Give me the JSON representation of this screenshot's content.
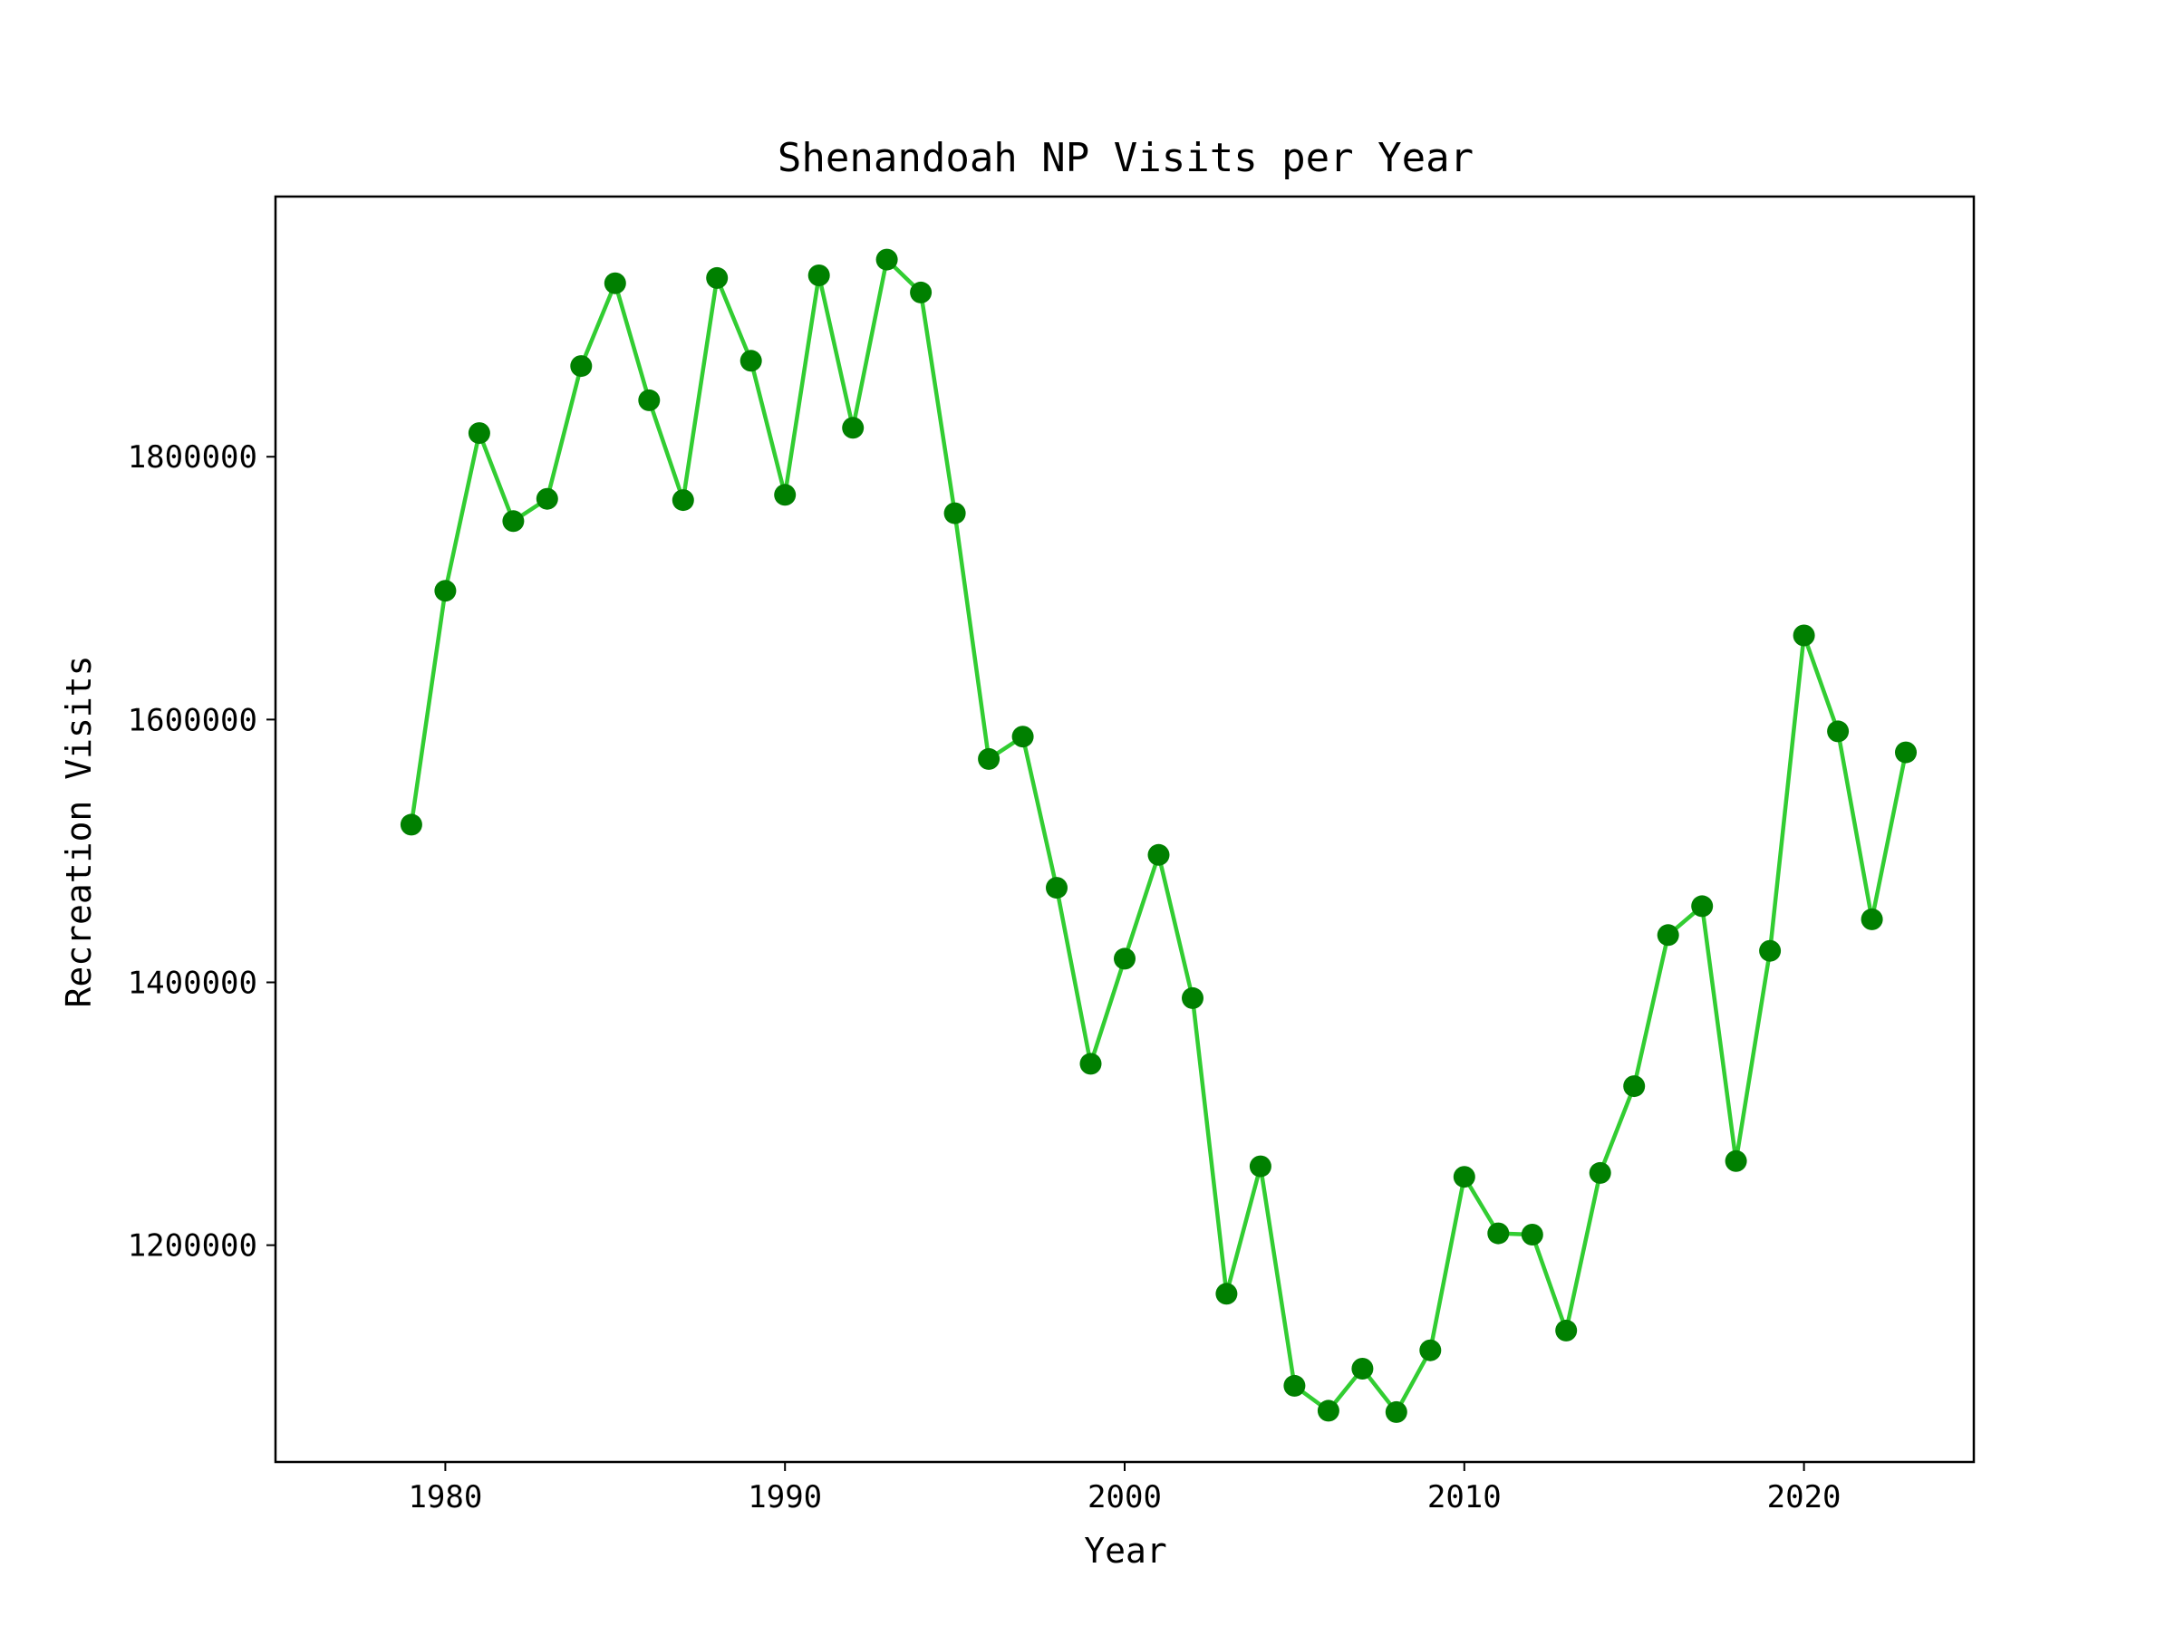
{
  "chart_data": {
    "type": "line",
    "title": "Shenandoah NP Visits per Year",
    "xlabel": "Year",
    "ylabel": "Recreation Visits",
    "xlim": [
      1975,
      2025
    ],
    "ylim": [
      1035000,
      1998000
    ],
    "x_ticks": [
      1980,
      1990,
      2000,
      2010,
      2020
    ],
    "y_ticks": [
      1200000,
      1400000,
      1600000,
      1800000
    ],
    "grid": false,
    "legend": "none",
    "line_color": "#32cd32",
    "marker_color": "#008000",
    "series": [
      {
        "x": [
          1979,
          1980,
          1981,
          1982,
          1983,
          1984,
          1985,
          1986,
          1987,
          1988,
          1989,
          1990,
          1991,
          1992,
          1993,
          1994,
          1995,
          1996,
          1997,
          1998,
          1999,
          2000,
          2001,
          2002,
          2003,
          2004,
          2005,
          2006,
          2007,
          2008,
          2009,
          2010,
          2011,
          2012,
          2013,
          2014,
          2015,
          2016,
          2017,
          2018,
          2019,
          2020,
          2021,
          2022,
          2023
        ],
        "values": [
          1520000,
          1698000,
          1818000,
          1751000,
          1768000,
          1869000,
          1932000,
          1843000,
          1767000,
          1936000,
          1873000,
          1771000,
          1938000,
          1822000,
          1950000,
          1925000,
          1757000,
          1570000,
          1587000,
          1472000,
          1338000,
          1418000,
          1497000,
          1388000,
          1163000,
          1260000,
          1093000,
          1074000,
          1106000,
          1073000,
          1120000,
          1252000,
          1209000,
          1208000,
          1135000,
          1255000,
          1321000,
          1436000,
          1458000,
          1264000,
          1424000,
          1664000,
          1591000,
          1448000,
          1575000
        ]
      }
    ]
  }
}
